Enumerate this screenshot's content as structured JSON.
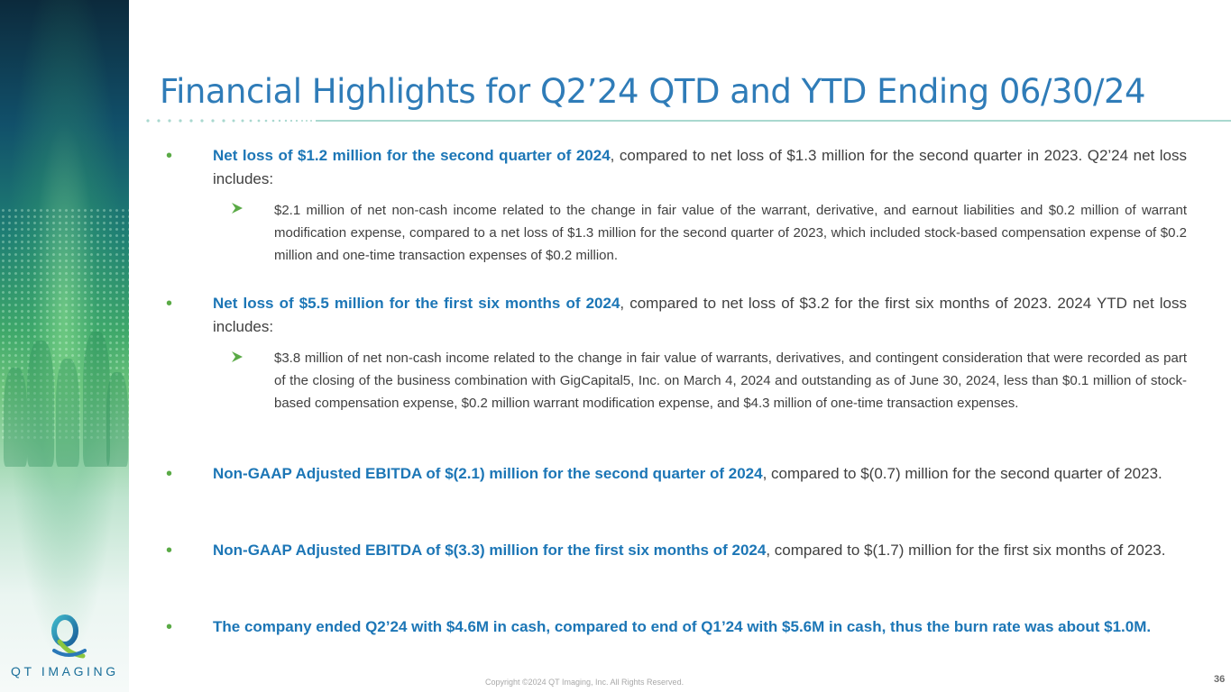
{
  "title": "Financial Highlights for Q2’24 QTD and YTD Ending 06/30/24",
  "logo_text": "QT IMAGING",
  "bullets": [
    {
      "bold": "Net loss of $1.2 million for the second quarter of 2024",
      "text": ", compared to net loss of $1.3 million for the second quarter in 2023. Q2’24 net loss includes:"
    },
    {
      "bold": "Net loss of $5.5 million for the first six months of 2024",
      "text": ", compared to net loss of $3.2 for the first six months of 2023. 2024 YTD net loss includes:"
    },
    {
      "bold": "Non-GAAP Adjusted EBITDA of $(2.1) million for the second quarter of 2024",
      "text": ", compared to $(0.7) million for the second quarter of 2023."
    },
    {
      "bold": "Non-GAAP Adjusted EBITDA of $(3.3) million for the first six months of 2024",
      "text": ", compared to $(1.7) million for the first six months of 2023."
    },
    {
      "bold": "The company ended Q2’24 with $4.6M in cash, compared to end of Q1’24 with $5.6M in cash, thus the burn rate was about $1.0M.",
      "text": ""
    }
  ],
  "subbullets": [
    " $2.1 million of net non-cash income related to the change in fair value of the warrant, derivative, and earnout liabilities and $0.2 million of warrant modification expense, compared to a net loss of $1.3 million for the second quarter of 2023, which included stock-based compensation expense of $0.2 million and one-time transaction expenses of $0.2 million.",
    " $3.8 million of net non-cash income related to the change in fair value of warrants, derivatives, and contingent consideration that were recorded as part of the closing of the business combination with GigCapital5, Inc. on March 4, 2024 and outstanding as of June 30, 2024, less than $0.1 million of stock-based compensation expense, $0.2 million warrant modification expense, and $4.3 million of one-time transaction expenses."
  ],
  "bullet_glyph": "•",
  "footer": {
    "copyright": "Copyright ©2024 QT Imaging, Inc. All Rights Reserved.",
    "page_number": "36"
  },
  "colors": {
    "title": "#2f7cb8",
    "bold_text": "#1c76b6",
    "bullet": "#5aaa46",
    "body_text": "#404040",
    "rule": "#a9d8cf"
  }
}
